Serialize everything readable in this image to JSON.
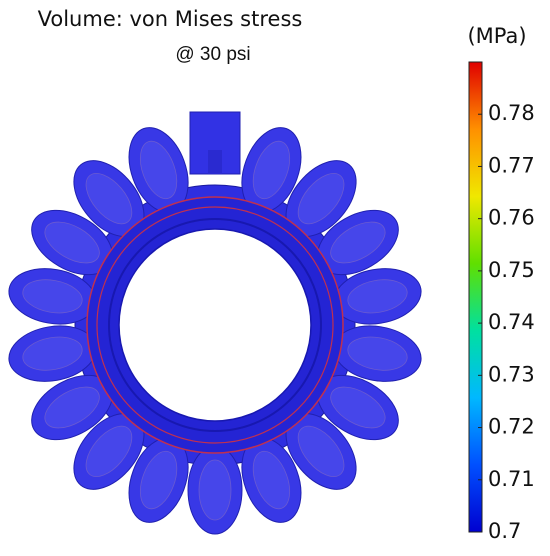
{
  "chart_data": {
    "type": "field",
    "title": "Volume: von Mises stress",
    "subtitle": "@ 30 psi",
    "colorbar": {
      "label": "(MPa)",
      "lim": [
        0.7,
        0.79
      ],
      "ticks": [
        0.7,
        0.71,
        0.72,
        0.73,
        0.74,
        0.75,
        0.76,
        0.77,
        0.78
      ],
      "colors": [
        "#0000d0",
        "#0050ff",
        "#00b8ff",
        "#00e0a0",
        "#60e000",
        "#f0e800",
        "#ff9000",
        "#e00000"
      ]
    }
  }
}
